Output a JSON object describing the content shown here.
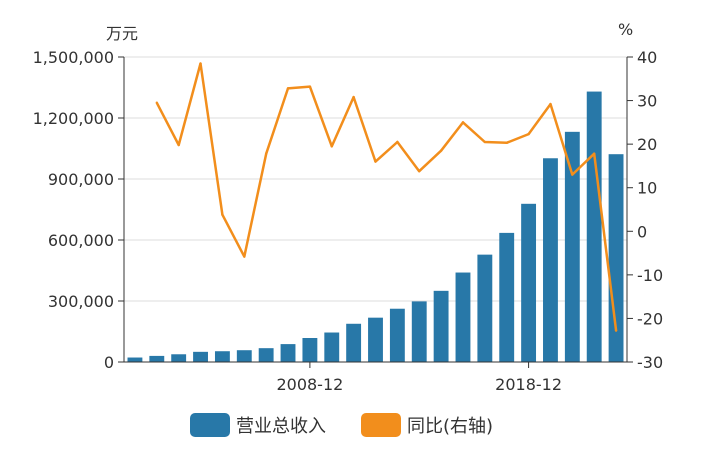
{
  "chart_data": {
    "type": "bar+line",
    "unit_left": "万元",
    "unit_right": "%",
    "x_tick_labels": [
      "2008-12",
      "2018-12"
    ],
    "x_tick_index": [
      8,
      18
    ],
    "y_left": {
      "ticks": [
        "0",
        "300,000",
        "600,000",
        "900,000",
        "1,200,000",
        "1,500,000"
      ],
      "min": 0,
      "max": 1500000
    },
    "y_right": {
      "ticks": [
        "-30",
        "-20",
        "-10",
        "0",
        "10",
        "20",
        "30",
        "40"
      ],
      "min": -30,
      "max": 40
    },
    "series": [
      {
        "name": "营业总收入",
        "type": "bar",
        "color": "#2878a8",
        "values": [
          22000,
          30000,
          38000,
          50000,
          53000,
          58000,
          68000,
          88000,
          118000,
          145000,
          188000,
          218000,
          262000,
          298000,
          350000,
          440000,
          528000,
          635000,
          778000,
          1002000,
          1132000,
          1330000,
          1022000
        ]
      },
      {
        "name": "同比(右轴)",
        "type": "line",
        "color": "#f28e1c",
        "values": [
          29.5,
          19.8,
          38.5,
          3.8,
          -5.8,
          17.8,
          32.8,
          33.2,
          19.5,
          30.8,
          16.0,
          20.5,
          13.8,
          18.5,
          25.0,
          20.5,
          20.3,
          22.3,
          29.2,
          13.0,
          17.8,
          -22.8
        ]
      }
    ],
    "grid": true,
    "legend_position": "bottom"
  }
}
